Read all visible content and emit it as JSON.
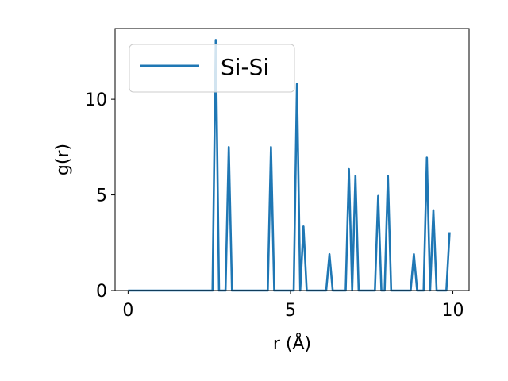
{
  "chart_data": {
    "type": "line",
    "xlabel": "r (Å)",
    "ylabel": "g(r)",
    "xlim": [
      -0.4,
      10.5
    ],
    "ylim": [
      0,
      13.7
    ],
    "xticks": [
      0,
      5,
      10
    ],
    "yticks": [
      0,
      5,
      10
    ],
    "xtick_labels": [
      "0",
      "5",
      "10"
    ],
    "ytick_labels": [
      "0",
      "5",
      "10"
    ],
    "grid": false,
    "legend_position": "top-left",
    "series": [
      {
        "name": "Si-Si",
        "color": "#1f77b4",
        "x": [
          0.0,
          2.6,
          2.7,
          2.8,
          3.0,
          3.1,
          3.2,
          4.3,
          4.4,
          4.5,
          5.1,
          5.2,
          5.3,
          5.4,
          5.5,
          6.1,
          6.2,
          6.3,
          6.7,
          6.8,
          6.9,
          7.0,
          7.1,
          7.6,
          7.7,
          7.8,
          7.9,
          8.0,
          8.1,
          8.2,
          8.7,
          8.8,
          8.9,
          9.1,
          9.2,
          9.3,
          9.4,
          9.5,
          9.8,
          9.9
        ],
        "y": [
          0,
          0,
          13.1,
          0,
          0,
          7.5,
          0,
          0,
          7.5,
          0,
          0,
          10.8,
          0,
          3.35,
          0,
          0,
          1.9,
          0,
          0,
          6.35,
          0,
          6.0,
          0,
          0,
          4.95,
          0,
          0,
          6.0,
          0,
          0,
          0,
          1.9,
          0,
          0,
          6.95,
          0,
          4.2,
          0,
          0,
          3.05
        ]
      }
    ]
  }
}
